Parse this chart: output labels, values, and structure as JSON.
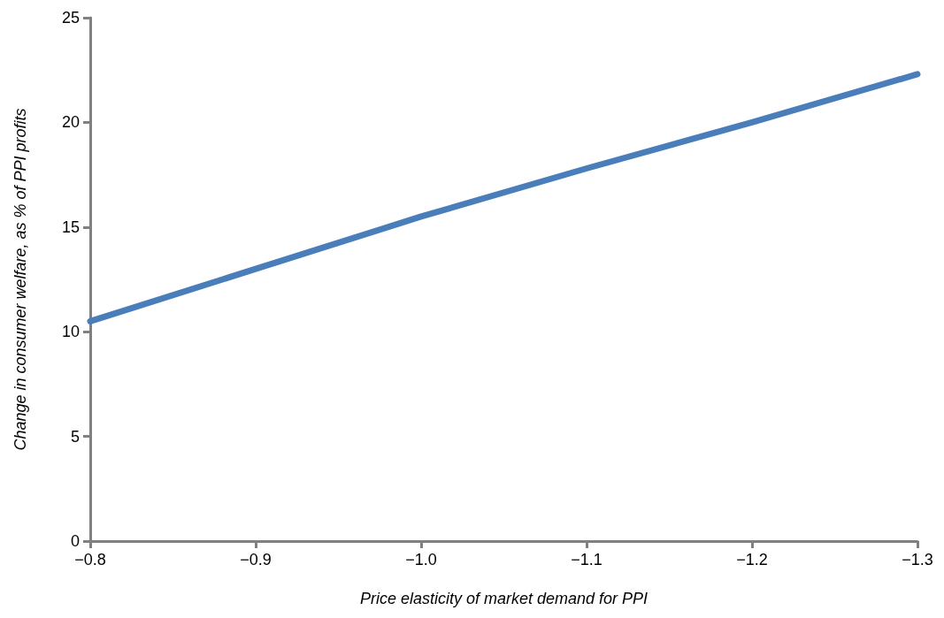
{
  "chart_data": {
    "type": "line",
    "xlabel": "Price elasticity of market demand for PPI",
    "ylabel": "Change in consumer welfare, as % of PPI profits",
    "x": [
      -0.8,
      -0.9,
      -1.0,
      -1.1,
      -1.2,
      -1.3
    ],
    "series": [
      {
        "color": "#4a7ebb",
        "values": [
          10.5,
          13.0,
          15.5,
          17.8,
          20.0,
          22.3
        ]
      }
    ],
    "xlim": [
      -0.8,
      -1.3
    ],
    "xticks": [
      {
        "value": -0.8,
        "label": "−0.8"
      },
      {
        "value": -0.9,
        "label": "−0.9"
      },
      {
        "value": -1.0,
        "label": "−1.0"
      },
      {
        "value": -1.1,
        "label": "−1.1"
      },
      {
        "value": -1.2,
        "label": "−1.2"
      },
      {
        "value": -1.3,
        "label": "−1.3"
      }
    ],
    "ylim": [
      0,
      25
    ],
    "yticks": [
      0,
      5,
      10,
      15,
      20,
      25
    ],
    "grid": false,
    "marker": "none",
    "line_style": "solid"
  }
}
